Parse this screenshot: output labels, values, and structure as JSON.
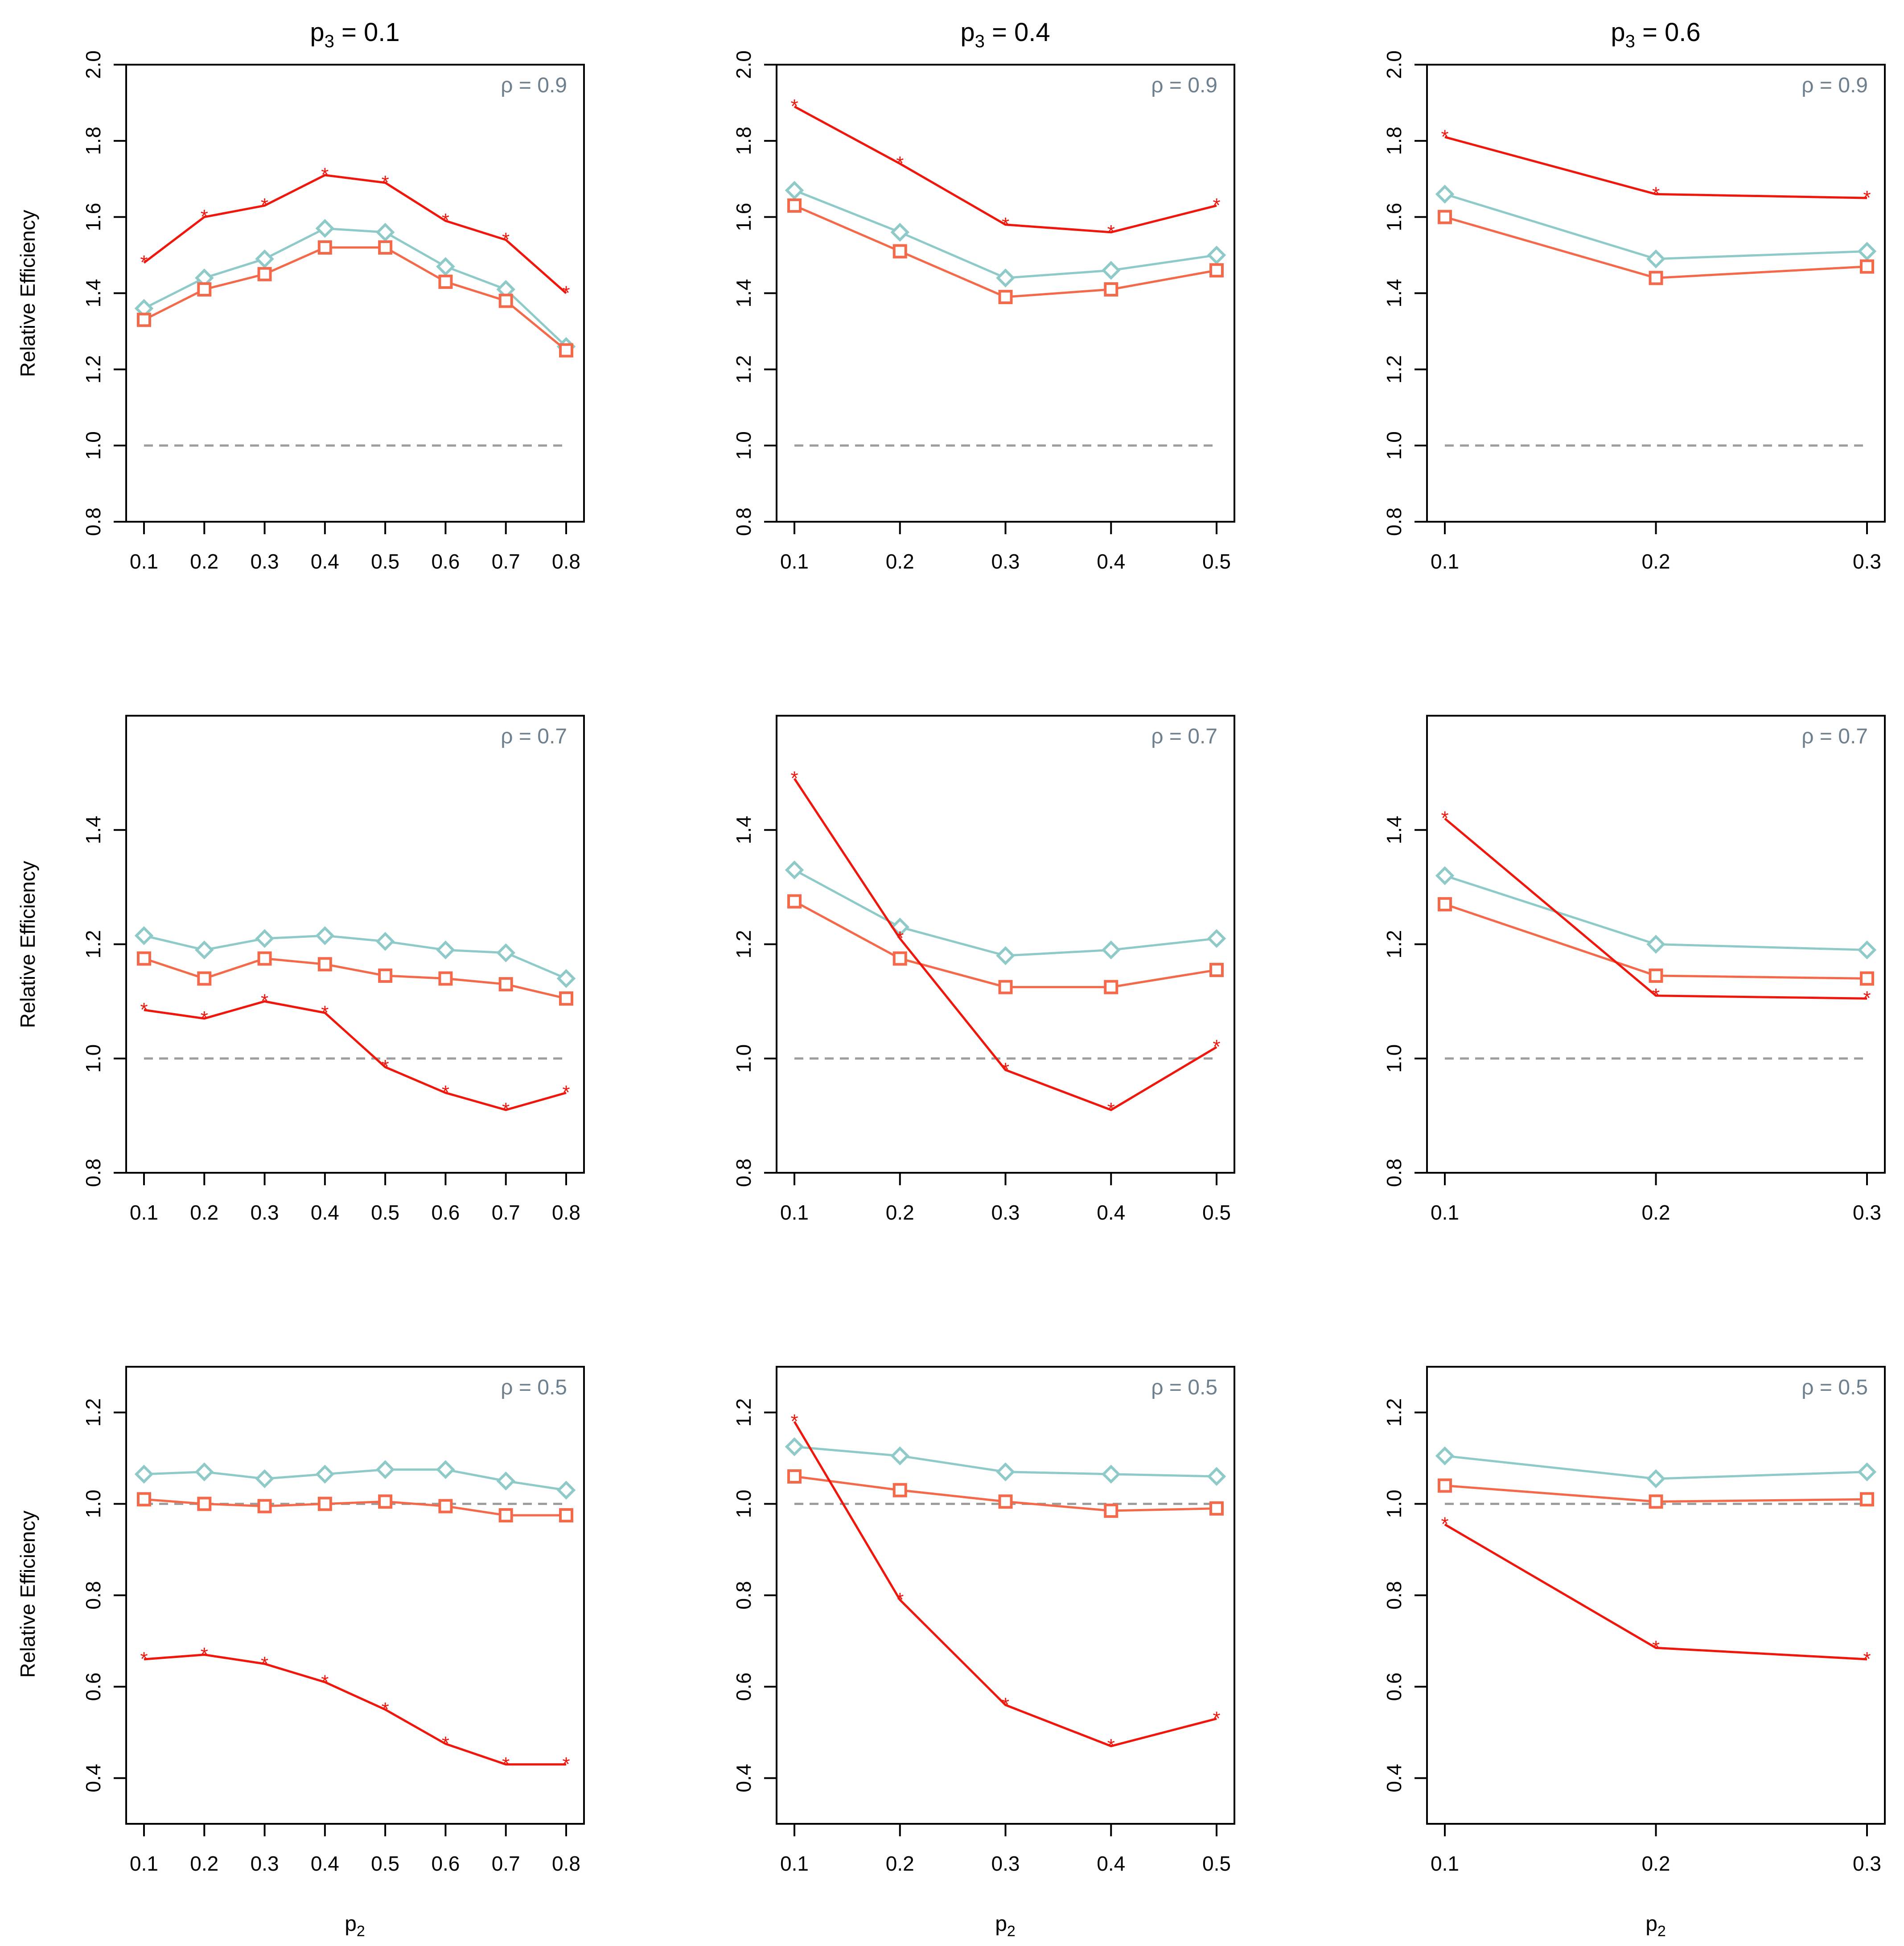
{
  "colors": {
    "diamond_series": "#8ECAC8",
    "square_series": "#F4694A",
    "star_series": "#F0160C",
    "reference_line": "#9E9E9E",
    "rho_label": "#6E7F8E",
    "axis": "#000000"
  },
  "column_titles": [
    {
      "base": "p",
      "sub": "3",
      "rest": " = 0.1"
    },
    {
      "base": "p",
      "sub": "3",
      "rest": " = 0.4"
    },
    {
      "base": "p",
      "sub": "3",
      "rest": " = 0.6"
    }
  ],
  "y_axis_label": "Relative Efficiency",
  "x_axis_label": {
    "base": "p",
    "sub": "2"
  },
  "chart_data": [
    {
      "type": "line",
      "title": "p3 = 0.1, rho = 0.9",
      "rho_label": "ρ = 0.9",
      "x": [
        0.1,
        0.2,
        0.3,
        0.4,
        0.5,
        0.6,
        0.7,
        0.8
      ],
      "xticks": [
        "0.1",
        "0.2",
        "0.3",
        "0.4",
        "0.5",
        "0.6",
        "0.7",
        "0.8"
      ],
      "ylim": [
        0.8,
        2.0
      ],
      "yticks": [
        "0.8",
        "1.0",
        "1.2",
        "1.4",
        "1.6",
        "1.8",
        "2.0"
      ],
      "reference": 1.0,
      "series": [
        {
          "name": "diamond",
          "values": [
            1.36,
            1.44,
            1.49,
            1.57,
            1.56,
            1.47,
            1.41,
            1.26
          ]
        },
        {
          "name": "square",
          "values": [
            1.33,
            1.41,
            1.45,
            1.52,
            1.52,
            1.43,
            1.38,
            1.25
          ]
        },
        {
          "name": "star",
          "values": [
            1.48,
            1.6,
            1.63,
            1.71,
            1.69,
            1.59,
            1.54,
            1.4
          ]
        }
      ]
    },
    {
      "type": "line",
      "title": "p3 = 0.4, rho = 0.9",
      "rho_label": "ρ = 0.9",
      "x": [
        0.1,
        0.2,
        0.3,
        0.4,
        0.5
      ],
      "xticks": [
        "0.1",
        "0.2",
        "0.3",
        "0.4",
        "0.5"
      ],
      "ylim": [
        0.8,
        2.0
      ],
      "yticks": [
        "0.8",
        "1.0",
        "1.2",
        "1.4",
        "1.6",
        "1.8",
        "2.0"
      ],
      "reference": 1.0,
      "series": [
        {
          "name": "diamond",
          "values": [
            1.67,
            1.56,
            1.44,
            1.46,
            1.5
          ]
        },
        {
          "name": "square",
          "values": [
            1.63,
            1.51,
            1.39,
            1.41,
            1.46
          ]
        },
        {
          "name": "star",
          "values": [
            1.89,
            1.74,
            1.58,
            1.56,
            1.63
          ]
        }
      ]
    },
    {
      "type": "line",
      "title": "p3 = 0.6, rho = 0.9",
      "rho_label": "ρ = 0.9",
      "x": [
        0.1,
        0.2,
        0.3
      ],
      "xticks": [
        "0.1",
        "0.2",
        "0.3"
      ],
      "ylim": [
        0.8,
        2.0
      ],
      "yticks": [
        "0.8",
        "1.0",
        "1.2",
        "1.4",
        "1.6",
        "1.8",
        "2.0"
      ],
      "reference": 1.0,
      "series": [
        {
          "name": "diamond",
          "values": [
            1.66,
            1.49,
            1.51
          ]
        },
        {
          "name": "square",
          "values": [
            1.6,
            1.44,
            1.47
          ]
        },
        {
          "name": "star",
          "values": [
            1.81,
            1.66,
            1.65
          ]
        }
      ]
    },
    {
      "type": "line",
      "title": "p3 = 0.1, rho = 0.7",
      "rho_label": "ρ = 0.7",
      "x": [
        0.1,
        0.2,
        0.3,
        0.4,
        0.5,
        0.6,
        0.7,
        0.8
      ],
      "xticks": [
        "0.1",
        "0.2",
        "0.3",
        "0.4",
        "0.5",
        "0.6",
        "0.7",
        "0.8"
      ],
      "ylim": [
        0.8,
        1.6
      ],
      "yticks": [
        "0.8",
        "1.0",
        "1.2",
        "1.4"
      ],
      "reference": 1.0,
      "series": [
        {
          "name": "diamond",
          "values": [
            1.215,
            1.19,
            1.21,
            1.215,
            1.205,
            1.19,
            1.185,
            1.14
          ]
        },
        {
          "name": "square",
          "values": [
            1.175,
            1.14,
            1.175,
            1.165,
            1.145,
            1.14,
            1.13,
            1.105
          ]
        },
        {
          "name": "star",
          "values": [
            1.085,
            1.07,
            1.1,
            1.08,
            0.985,
            0.94,
            0.91,
            0.94
          ]
        }
      ]
    },
    {
      "type": "line",
      "title": "p3 = 0.4, rho = 0.7",
      "rho_label": "ρ = 0.7",
      "x": [
        0.1,
        0.2,
        0.3,
        0.4,
        0.5
      ],
      "xticks": [
        "0.1",
        "0.2",
        "0.3",
        "0.4",
        "0.5"
      ],
      "ylim": [
        0.8,
        1.6
      ],
      "yticks": [
        "0.8",
        "1.0",
        "1.2",
        "1.4"
      ],
      "reference": 1.0,
      "series": [
        {
          "name": "diamond",
          "values": [
            1.33,
            1.23,
            1.18,
            1.19,
            1.21
          ]
        },
        {
          "name": "square",
          "values": [
            1.275,
            1.175,
            1.125,
            1.125,
            1.155
          ]
        },
        {
          "name": "star",
          "values": [
            1.49,
            1.21,
            0.98,
            0.91,
            1.02
          ]
        }
      ]
    },
    {
      "type": "line",
      "title": "p3 = 0.6, rho = 0.7",
      "rho_label": "ρ = 0.7",
      "x": [
        0.1,
        0.2,
        0.3
      ],
      "xticks": [
        "0.1",
        "0.2",
        "0.3"
      ],
      "ylim": [
        0.8,
        1.6
      ],
      "yticks": [
        "0.8",
        "1.0",
        "1.2",
        "1.4"
      ],
      "reference": 1.0,
      "series": [
        {
          "name": "diamond",
          "values": [
            1.32,
            1.2,
            1.19
          ]
        },
        {
          "name": "square",
          "values": [
            1.27,
            1.145,
            1.14
          ]
        },
        {
          "name": "star",
          "values": [
            1.42,
            1.11,
            1.105
          ]
        }
      ]
    },
    {
      "type": "line",
      "title": "p3 = 0.1, rho = 0.5",
      "rho_label": "ρ = 0.5",
      "x": [
        0.1,
        0.2,
        0.3,
        0.4,
        0.5,
        0.6,
        0.7,
        0.8
      ],
      "xticks": [
        "0.1",
        "0.2",
        "0.3",
        "0.4",
        "0.5",
        "0.6",
        "0.7",
        "0.8"
      ],
      "ylim": [
        0.3,
        1.3
      ],
      "yticks": [
        "0.4",
        "0.6",
        "0.8",
        "1.0",
        "1.2"
      ],
      "reference": 1.0,
      "series": [
        {
          "name": "diamond",
          "values": [
            1.065,
            1.07,
            1.055,
            1.065,
            1.075,
            1.075,
            1.05,
            1.03
          ]
        },
        {
          "name": "square",
          "values": [
            1.01,
            1.0,
            0.995,
            1.0,
            1.005,
            0.995,
            0.975,
            0.975
          ]
        },
        {
          "name": "star",
          "values": [
            0.66,
            0.67,
            0.65,
            0.61,
            0.55,
            0.475,
            0.43,
            0.43
          ]
        }
      ]
    },
    {
      "type": "line",
      "title": "p3 = 0.4, rho = 0.5",
      "rho_label": "ρ = 0.5",
      "x": [
        0.1,
        0.2,
        0.3,
        0.4,
        0.5
      ],
      "xticks": [
        "0.1",
        "0.2",
        "0.3",
        "0.4",
        "0.5"
      ],
      "ylim": [
        0.3,
        1.3
      ],
      "yticks": [
        "0.4",
        "0.6",
        "0.8",
        "1.0",
        "1.2"
      ],
      "reference": 1.0,
      "series": [
        {
          "name": "diamond",
          "values": [
            1.125,
            1.105,
            1.07,
            1.065,
            1.06
          ]
        },
        {
          "name": "square",
          "values": [
            1.06,
            1.03,
            1.005,
            0.985,
            0.99
          ]
        },
        {
          "name": "star",
          "values": [
            1.18,
            0.79,
            0.56,
            0.47,
            0.53
          ]
        }
      ]
    },
    {
      "type": "line",
      "title": "p3 = 0.6, rho = 0.5",
      "rho_label": "ρ = 0.5",
      "x": [
        0.1,
        0.2,
        0.3
      ],
      "xticks": [
        "0.1",
        "0.2",
        "0.3"
      ],
      "ylim": [
        0.3,
        1.3
      ],
      "yticks": [
        "0.4",
        "0.6",
        "0.8",
        "1.0",
        "1.2"
      ],
      "reference": 1.0,
      "series": [
        {
          "name": "diamond",
          "values": [
            1.105,
            1.055,
            1.07
          ]
        },
        {
          "name": "square",
          "values": [
            1.04,
            1.005,
            1.01
          ]
        },
        {
          "name": "star",
          "values": [
            0.955,
            0.685,
            0.66
          ]
        }
      ]
    }
  ]
}
